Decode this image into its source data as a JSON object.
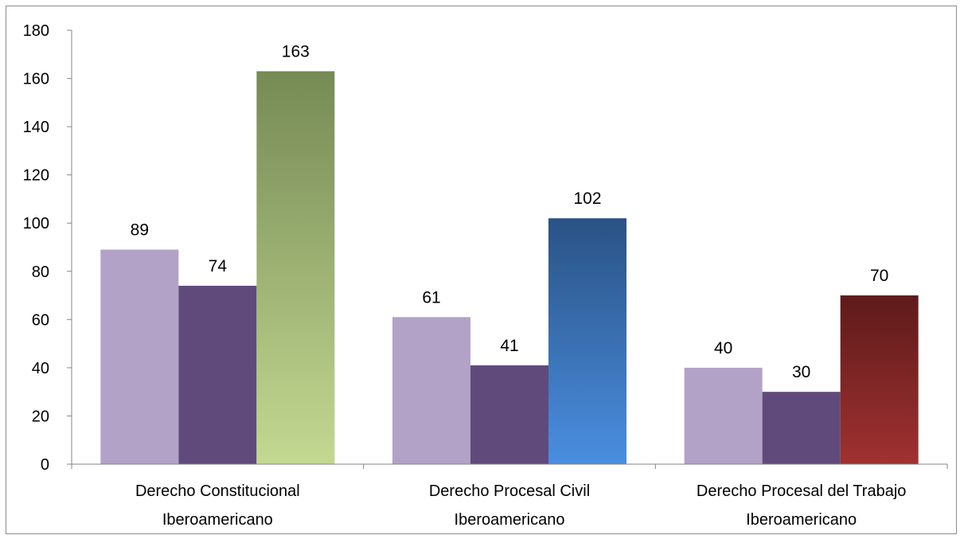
{
  "chart_data": {
    "type": "bar",
    "categories": [
      [
        "Derecho Constitucional",
        "Iberoamericano"
      ],
      [
        "Derecho Procesal Civil",
        "Iberoamericano"
      ],
      [
        "Derecho Procesal del Trabajo",
        "Iberoamericano"
      ]
    ],
    "series": [
      {
        "values": [
          89,
          61,
          40
        ]
      },
      {
        "values": [
          74,
          41,
          30
        ]
      },
      {
        "values": [
          163,
          102,
          70
        ]
      }
    ],
    "data_labels": [
      [
        "89",
        "74",
        "163"
      ],
      [
        "61",
        "41",
        "102"
      ],
      [
        "40",
        "30",
        "70"
      ]
    ],
    "ylim": [
      0,
      180
    ],
    "yticks": [
      0,
      20,
      40,
      60,
      80,
      100,
      120,
      140,
      160,
      180
    ],
    "grid": false,
    "legend": "none",
    "colors": {
      "series1": "#b3a2c7",
      "series2": "#604a7b",
      "third_by_category": [
        [
          "#c3d991",
          "#768a55"
        ],
        [
          "#4a8ee0",
          "#2a5285"
        ],
        [
          "#a03131",
          "#5e1a1a"
        ]
      ],
      "axis": "#868686"
    }
  }
}
